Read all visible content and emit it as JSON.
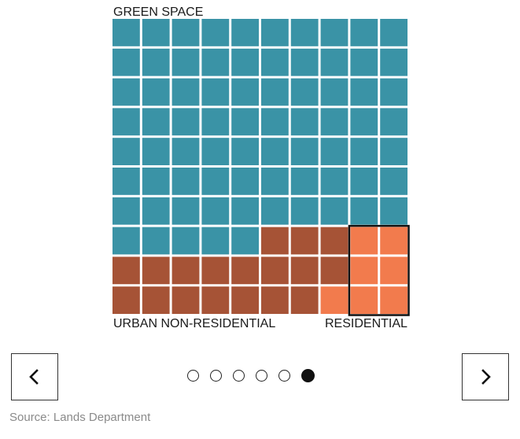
{
  "chart_data": {
    "type": "waffle",
    "grid": {
      "rows": 10,
      "cols": 10
    },
    "labels": {
      "top": "GREEN SPACE",
      "bottom_left": "URBAN NON-RESIDENTIAL",
      "bottom_right": "RESIDENTIAL"
    },
    "series": [
      {
        "name": "GREEN SPACE",
        "count": 75,
        "color": "#3a93a6"
      },
      {
        "name": "URBAN NON-RESIDENTIAL",
        "count": 18,
        "color": "#a65336"
      },
      {
        "name": "RESIDENTIAL",
        "count": 7,
        "color": "#f27b4d"
      }
    ],
    "highlight": "RESIDENTIAL"
  },
  "carousel": {
    "slides": 6,
    "active": 6
  },
  "icons": {
    "prev": "chevron-left-icon",
    "next": "chevron-right-icon"
  },
  "source": "Source: Lands Department"
}
